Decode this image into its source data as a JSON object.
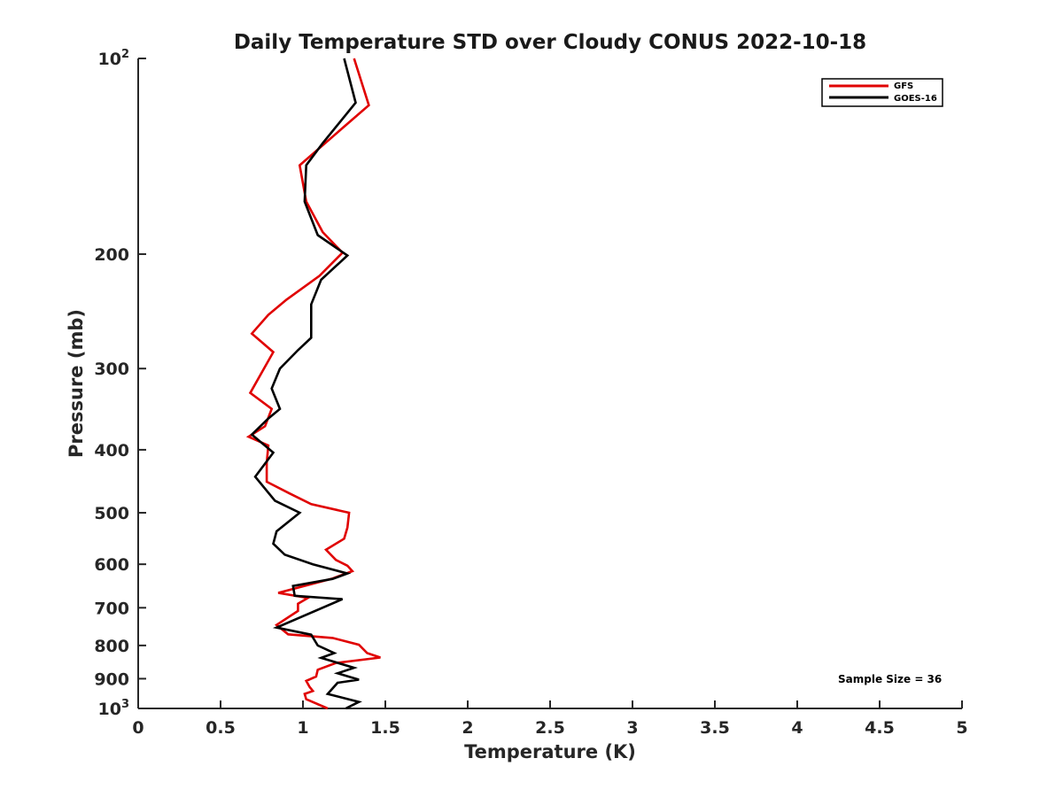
{
  "chart_data": {
    "type": "line",
    "title": "Daily Temperature STD over Cloudy CONUS 2022-10-18",
    "xlabel": "Temperature (K)",
    "ylabel": "Pressure (mb)",
    "xlim": [
      0,
      5
    ],
    "ylim": [
      100,
      1000
    ],
    "y_scale": "log",
    "y_reversed": true,
    "grid": false,
    "legend_position": "top-right",
    "x_ticks": [
      "0",
      "0.5",
      "1",
      "1.5",
      "2",
      "2.5",
      "3",
      "3.5",
      "4",
      "4.5",
      "5"
    ],
    "y_ticks": [
      {
        "value": 100,
        "label": "",
        "base": "10",
        "exp": "2"
      },
      {
        "value": 200,
        "label": "200"
      },
      {
        "value": 300,
        "label": "300"
      },
      {
        "value": 400,
        "label": "400"
      },
      {
        "value": 500,
        "label": "500"
      },
      {
        "value": 600,
        "label": "600"
      },
      {
        "value": 700,
        "label": "700"
      },
      {
        "value": 800,
        "label": "800"
      },
      {
        "value": 900,
        "label": "900"
      },
      {
        "value": 1000,
        "label": "",
        "base": "10",
        "exp": "3"
      }
    ],
    "annotation": "Sample Size = 36",
    "series": [
      {
        "name": "GFS",
        "color": "#e00000",
        "points": [
          [
            1.31,
            100
          ],
          [
            1.4,
            118
          ],
          [
            0.98,
            146
          ],
          [
            1.02,
            166
          ],
          [
            1.12,
            185
          ],
          [
            1.24,
            199
          ],
          [
            1.1,
            216
          ],
          [
            0.9,
            235
          ],
          [
            0.79,
            248
          ],
          [
            0.69,
            265
          ],
          [
            0.82,
            283
          ],
          [
            0.68,
            327
          ],
          [
            0.81,
            346
          ],
          [
            0.77,
            368
          ],
          [
            0.67,
            382
          ],
          [
            0.79,
            394
          ],
          [
            0.78,
            419
          ],
          [
            0.78,
            448
          ],
          [
            0.92,
            467
          ],
          [
            1.05,
            485
          ],
          [
            1.28,
            500
          ],
          [
            1.27,
            527
          ],
          [
            1.25,
            548
          ],
          [
            1.14,
            570
          ],
          [
            1.2,
            591
          ],
          [
            1.27,
            603
          ],
          [
            1.3,
            615
          ],
          [
            1.18,
            631
          ],
          [
            0.85,
            664
          ],
          [
            1.03,
            676
          ],
          [
            0.97,
            690
          ],
          [
            0.97,
            708
          ],
          [
            0.84,
            744
          ],
          [
            0.91,
            769
          ],
          [
            1.18,
            779
          ],
          [
            1.34,
            798
          ],
          [
            1.39,
            822
          ],
          [
            1.47,
            835
          ],
          [
            1.2,
            851
          ],
          [
            1.09,
            872
          ],
          [
            1.08,
            893
          ],
          [
            1.02,
            907
          ],
          [
            1.04,
            926
          ],
          [
            1.06,
            940
          ],
          [
            1.01,
            950
          ],
          [
            1.02,
            968
          ],
          [
            1.15,
            1000
          ]
        ]
      },
      {
        "name": "GOES-16",
        "color": "#000000",
        "points": [
          [
            1.25,
            100
          ],
          [
            1.32,
            117
          ],
          [
            1.12,
            135
          ],
          [
            1.02,
            146
          ],
          [
            1.01,
            166
          ],
          [
            1.09,
            187
          ],
          [
            1.27,
            201
          ],
          [
            1.11,
            219
          ],
          [
            1.05,
            239
          ],
          [
            1.05,
            269
          ],
          [
            0.97,
            281
          ],
          [
            0.86,
            300
          ],
          [
            0.81,
            322
          ],
          [
            0.86,
            346
          ],
          [
            0.79,
            358
          ],
          [
            0.69,
            379
          ],
          [
            0.82,
            404
          ],
          [
            0.71,
            440
          ],
          [
            0.83,
            479
          ],
          [
            0.98,
            500
          ],
          [
            0.84,
            534
          ],
          [
            0.82,
            558
          ],
          [
            0.89,
            580
          ],
          [
            1.06,
            600
          ],
          [
            1.27,
            620
          ],
          [
            1.18,
            632
          ],
          [
            0.94,
            648
          ],
          [
            0.95,
            671
          ],
          [
            1.24,
            679
          ],
          [
            0.84,
            751
          ],
          [
            1.05,
            770
          ],
          [
            1.09,
            800
          ],
          [
            1.19,
            822
          ],
          [
            1.11,
            836
          ],
          [
            1.31,
            866
          ],
          [
            1.21,
            883
          ],
          [
            1.34,
            903
          ],
          [
            1.21,
            913
          ],
          [
            1.15,
            950
          ],
          [
            1.34,
            977
          ],
          [
            1.26,
            1000
          ]
        ]
      }
    ]
  }
}
